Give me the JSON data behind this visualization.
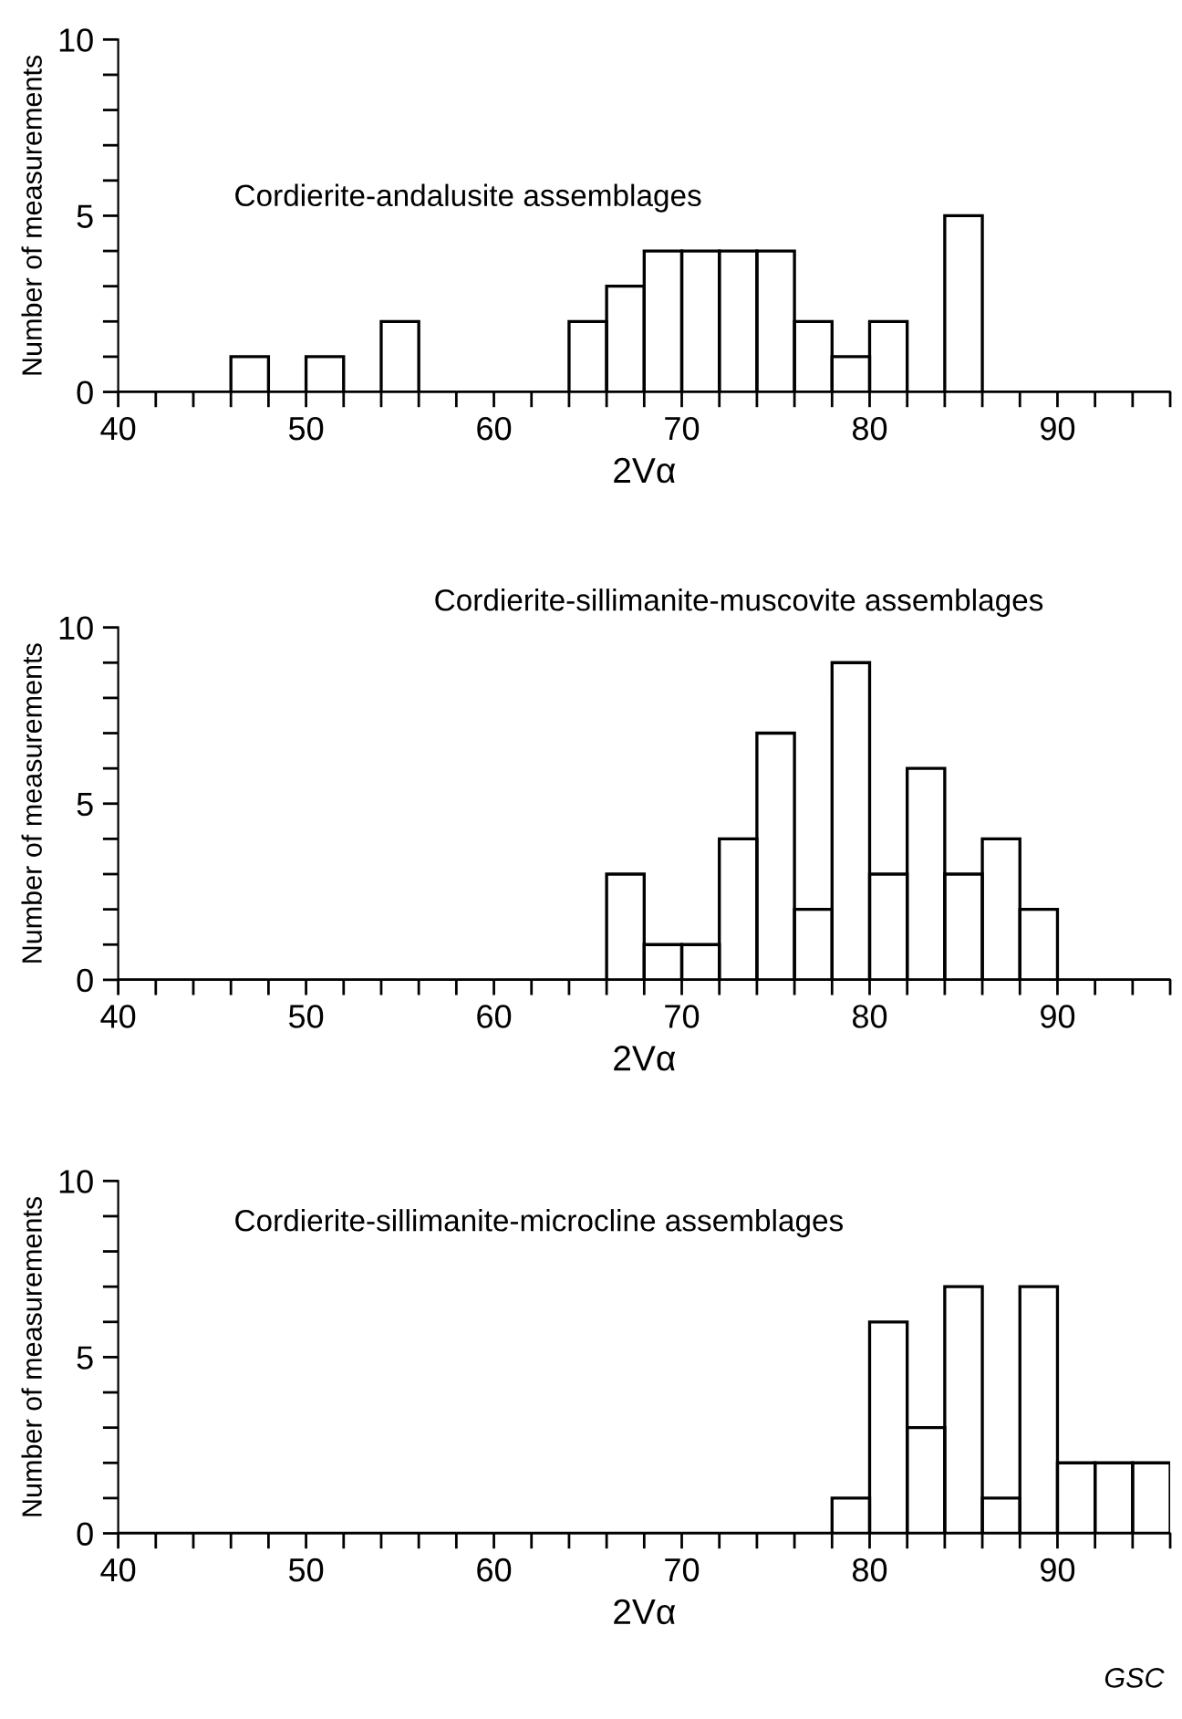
{
  "chart_data": [
    {
      "type": "histogram",
      "title": "Cordierite-andalusite assemblages",
      "xlabel": "2Vα",
      "ylabel": "Number of measurements",
      "bins": [
        40,
        42,
        44,
        46,
        48,
        50,
        52,
        54,
        56,
        58,
        60,
        62,
        64,
        66,
        68,
        70,
        72,
        74,
        76,
        78,
        80,
        82,
        84,
        86,
        88,
        90,
        92,
        94,
        96
      ],
      "values": [
        0,
        0,
        0,
        1,
        0,
        1,
        0,
        2,
        0,
        0,
        0,
        0,
        2,
        3,
        4,
        4,
        4,
        4,
        2,
        1,
        2,
        0,
        5,
        0,
        0,
        0,
        0,
        0
      ],
      "color": "#000000",
      "xlim": [
        40,
        96
      ],
      "xticks": [
        40,
        {
          "value": 42,
          "label": null
        },
        {
          "value": 44,
          "label": null
        },
        {
          "value": 46,
          "label": null
        },
        {
          "value": 48,
          "label": null
        },
        50,
        {
          "value": 52,
          "label": null
        },
        {
          "value": 54,
          "label": null
        },
        {
          "value": 56,
          "label": null
        },
        {
          "value": 58,
          "label": null
        },
        60,
        {
          "value": 62,
          "label": null
        },
        {
          "value": 64,
          "label": null
        },
        {
          "value": 66,
          "label": null
        },
        {
          "value": 68,
          "label": null
        },
        70,
        {
          "value": 72,
          "label": null
        },
        {
          "value": 74,
          "label": null
        },
        {
          "value": 76,
          "label": null
        },
        {
          "value": 78,
          "label": null
        },
        80,
        {
          "value": 82,
          "label": null
        },
        {
          "value": 84,
          "label": null
        },
        {
          "value": 86,
          "label": null
        },
        {
          "value": 88,
          "label": null
        },
        90,
        {
          "value": 92,
          "label": null
        },
        {
          "value": 94,
          "label": null
        },
        {
          "value": 96,
          "label": null
        }
      ],
      "ylim": [
        0,
        10
      ],
      "yticks": [
        0,
        {
          "value": 1,
          "label": null
        },
        {
          "value": 2,
          "label": null
        },
        {
          "value": 3,
          "label": null
        },
        {
          "value": 4,
          "label": null
        },
        5,
        {
          "value": 6,
          "label": null
        },
        {
          "value": 7,
          "label": null
        },
        {
          "value": 8,
          "label": null
        },
        {
          "value": 9,
          "label": null
        },
        10
      ]
    },
    {
      "type": "histogram",
      "title": "Cordierite-sillimanite-muscovite assemblages",
      "xlabel": "2Vα",
      "ylabel": "Number of measurements",
      "bins": [
        40,
        42,
        44,
        46,
        48,
        50,
        52,
        54,
        56,
        58,
        60,
        62,
        64,
        66,
        68,
        70,
        72,
        74,
        76,
        78,
        80,
        82,
        84,
        86,
        88,
        90,
        92,
        94,
        96
      ],
      "values": [
        0,
        0,
        0,
        0,
        0,
        0,
        0,
        0,
        0,
        0,
        0,
        0,
        0,
        3,
        1,
        1,
        4,
        7,
        2,
        9,
        3,
        6,
        3,
        4,
        2,
        0,
        0,
        0
      ],
      "color": "#000000",
      "xlim": [
        40,
        96
      ],
      "xticks": [
        40,
        {
          "value": 42,
          "label": null
        },
        {
          "value": 44,
          "label": null
        },
        {
          "value": 46,
          "label": null
        },
        {
          "value": 48,
          "label": null
        },
        50,
        {
          "value": 52,
          "label": null
        },
        {
          "value": 54,
          "label": null
        },
        {
          "value": 56,
          "label": null
        },
        {
          "value": 58,
          "label": null
        },
        60,
        {
          "value": 62,
          "label": null
        },
        {
          "value": 64,
          "label": null
        },
        {
          "value": 66,
          "label": null
        },
        {
          "value": 68,
          "label": null
        },
        70,
        {
          "value": 72,
          "label": null
        },
        {
          "value": 74,
          "label": null
        },
        {
          "value": 76,
          "label": null
        },
        {
          "value": 78,
          "label": null
        },
        80,
        {
          "value": 82,
          "label": null
        },
        {
          "value": 84,
          "label": null
        },
        {
          "value": 86,
          "label": null
        },
        {
          "value": 88,
          "label": null
        },
        90,
        {
          "value": 92,
          "label": null
        },
        {
          "value": 94,
          "label": null
        },
        {
          "value": 96,
          "label": null
        }
      ],
      "ylim": [
        0,
        10
      ],
      "yticks": [
        0,
        {
          "value": 1,
          "label": null
        },
        {
          "value": 2,
          "label": null
        },
        {
          "value": 3,
          "label": null
        },
        {
          "value": 4,
          "label": null
        },
        5,
        {
          "value": 6,
          "label": null
        },
        {
          "value": 7,
          "label": null
        },
        {
          "value": 8,
          "label": null
        },
        {
          "value": 9,
          "label": null
        },
        10
      ]
    },
    {
      "type": "histogram",
      "title": "Cordierite-sillimanite-microcline assemblages",
      "xlabel": "2Vα",
      "ylabel": "Number of measurements",
      "bins": [
        40,
        42,
        44,
        46,
        48,
        50,
        52,
        54,
        56,
        58,
        60,
        62,
        64,
        66,
        68,
        70,
        72,
        74,
        76,
        78,
        80,
        82,
        84,
        86,
        88,
        90,
        92,
        94,
        96
      ],
      "values": [
        0,
        0,
        0,
        0,
        0,
        0,
        0,
        0,
        0,
        0,
        0,
        0,
        0,
        0,
        0,
        0,
        0,
        0,
        0,
        1,
        6,
        3,
        7,
        1,
        7,
        2,
        2,
        2
      ],
      "color": "#000000",
      "xlim": [
        40,
        96
      ],
      "xticks": [
        40,
        {
          "value": 42,
          "label": null
        },
        {
          "value": 44,
          "label": null
        },
        {
          "value": 46,
          "label": null
        },
        {
          "value": 48,
          "label": null
        },
        50,
        {
          "value": 52,
          "label": null
        },
        {
          "value": 54,
          "label": null
        },
        {
          "value": 56,
          "label": null
        },
        {
          "value": 58,
          "label": null
        },
        60,
        {
          "value": 62,
          "label": null
        },
        {
          "value": 64,
          "label": null
        },
        {
          "value": 66,
          "label": null
        },
        {
          "value": 68,
          "label": null
        },
        70,
        {
          "value": 72,
          "label": null
        },
        {
          "value": 74,
          "label": null
        },
        {
          "value": 76,
          "label": null
        },
        {
          "value": 78,
          "label": null
        },
        80,
        {
          "value": 82,
          "label": null
        },
        {
          "value": 84,
          "label": null
        },
        {
          "value": 86,
          "label": null
        },
        {
          "value": 88,
          "label": null
        },
        90,
        {
          "value": 92,
          "label": null
        },
        {
          "value": 94,
          "label": null
        },
        {
          "value": 96,
          "label": null
        }
      ],
      "ylim": [
        0,
        10
      ],
      "yticks": [
        0,
        {
          "value": 1,
          "label": null
        },
        {
          "value": 2,
          "label": null
        },
        {
          "value": 3,
          "label": null
        },
        {
          "value": 4,
          "label": null
        },
        5,
        {
          "value": 6,
          "label": null
        },
        {
          "value": 7,
          "label": null
        },
        {
          "value": 8,
          "label": null
        },
        {
          "value": 9,
          "label": null
        },
        10
      ],
      "annotations": [
        "GSC"
      ]
    }
  ]
}
